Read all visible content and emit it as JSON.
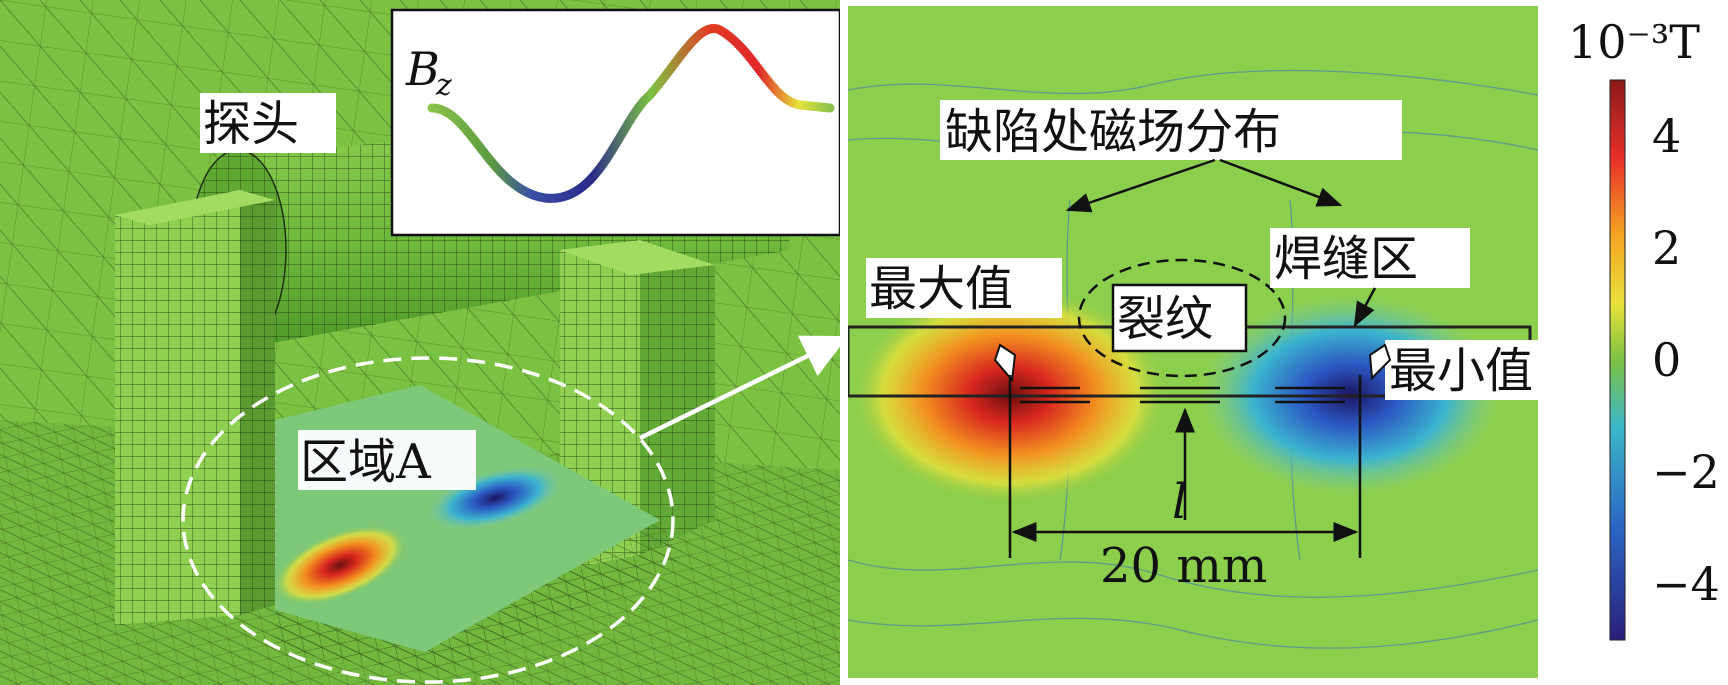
{
  "left_panel": {
    "probe_label": "探头",
    "region_label": "区域A",
    "inset_label": "B",
    "inset_subscript": "z"
  },
  "right_panel": {
    "field_label": "缺陷处磁场分布",
    "max_label": "最大值",
    "crack_label": "裂纹",
    "weld_label": "焊缝区",
    "min_label": "最小值",
    "length_symbol": "l",
    "distance_label": "20 mm"
  },
  "colorbar": {
    "unit": "10⁻³T",
    "ticks": [
      "4",
      "2",
      "0",
      "−2",
      "−4"
    ],
    "tick_values": [
      4,
      2,
      0,
      -2,
      -4
    ],
    "range": [
      -5,
      5
    ],
    "colors": [
      "#8b1a1a",
      "#e8302a",
      "#f5a623",
      "#e8e23a",
      "#7cc242",
      "#3bb7c9",
      "#2b66c4",
      "#2a1f7a"
    ]
  }
}
